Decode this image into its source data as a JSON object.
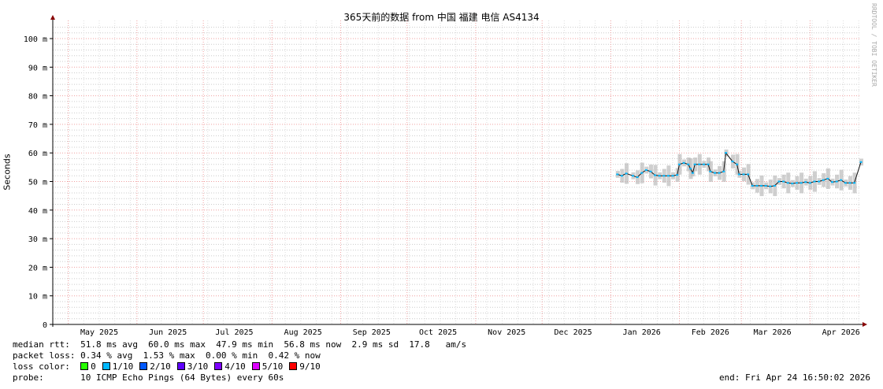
{
  "title": "365天前的数据 from 中国 福建 电信 AS4134",
  "watermark": "RRDTOOL / TOBI OETIKER",
  "chart_data": {
    "type": "line",
    "title": "365天前的数据 from 中国 福建 电信 AS4134",
    "ylabel": "Seconds",
    "ylim": [
      0,
      0.105
    ],
    "yticks": [
      {
        "v": 0,
        "label": "0"
      },
      {
        "v": 10,
        "label": "10 m"
      },
      {
        "v": 20,
        "label": "20 m"
      },
      {
        "v": 30,
        "label": "30 m"
      },
      {
        "v": 40,
        "label": "40 m"
      },
      {
        "v": 50,
        "label": "50 m"
      },
      {
        "v": 60,
        "label": "60 m"
      },
      {
        "v": 70,
        "label": "70 m"
      },
      {
        "v": 80,
        "label": "80 m"
      },
      {
        "v": 90,
        "label": "90 m"
      },
      {
        "v": 100,
        "label": "100 m"
      }
    ],
    "xrange": [
      "2025-04-24",
      "2026-04-24"
    ],
    "xticks": [
      "May 2025",
      "Jun 2025",
      "Jul 2025",
      "Aug 2025",
      "Sep 2025",
      "Oct 2025",
      "Nov 2025",
      "Dec 2025",
      "Jan 2026",
      "Feb 2026",
      "Mar 2026",
      "Apr 2026"
    ],
    "grid": true,
    "series": [
      {
        "name": "median rtt (ms)",
        "points": [
          [
            "2026-01-04",
            52.5
          ],
          [
            "2026-01-06",
            52
          ],
          [
            "2026-01-08",
            52.8
          ],
          [
            "2026-01-11",
            52
          ],
          [
            "2026-01-13",
            51.5
          ],
          [
            "2026-01-15",
            53
          ],
          [
            "2026-01-17",
            54
          ],
          [
            "2026-01-19",
            53.5
          ],
          [
            "2026-01-21",
            52.2
          ],
          [
            "2026-01-23",
            52
          ],
          [
            "2026-01-25",
            52
          ],
          [
            "2026-01-27",
            52
          ],
          [
            "2026-01-29",
            52
          ],
          [
            "2026-01-31",
            52.3
          ],
          [
            "2026-02-01",
            56
          ],
          [
            "2026-02-03",
            56.5
          ],
          [
            "2026-02-05",
            56
          ],
          [
            "2026-02-06",
            54.5
          ],
          [
            "2026-02-07",
            53
          ],
          [
            "2026-02-08",
            56
          ],
          [
            "2026-02-10",
            56
          ],
          [
            "2026-02-12",
            56
          ],
          [
            "2026-02-14",
            56
          ],
          [
            "2026-02-15",
            53.5
          ],
          [
            "2026-02-17",
            53
          ],
          [
            "2026-02-19",
            53
          ],
          [
            "2026-02-21",
            53.5
          ],
          [
            "2026-02-22",
            60
          ],
          [
            "2026-02-25",
            57
          ],
          [
            "2026-02-27",
            56
          ],
          [
            "2026-02-28",
            52.5
          ],
          [
            "2026-03-02",
            52.5
          ],
          [
            "2026-03-04",
            52.5
          ],
          [
            "2026-03-06",
            48.5
          ],
          [
            "2026-03-08",
            48.5
          ],
          [
            "2026-03-10",
            48.5
          ],
          [
            "2026-03-12",
            48.5
          ],
          [
            "2026-03-14",
            48.3
          ],
          [
            "2026-03-16",
            48.5
          ],
          [
            "2026-03-18",
            50
          ],
          [
            "2026-03-20",
            50
          ],
          [
            "2026-03-22",
            49.5
          ],
          [
            "2026-03-24",
            49.3
          ],
          [
            "2026-03-26",
            49.5
          ],
          [
            "2026-03-28",
            49.5
          ],
          [
            "2026-03-30",
            49.8
          ],
          [
            "2026-04-01",
            49.5
          ],
          [
            "2026-04-03",
            50
          ],
          [
            "2026-04-05",
            50
          ],
          [
            "2026-04-07",
            50.5
          ],
          [
            "2026-04-09",
            51
          ],
          [
            "2026-04-11",
            49.8
          ],
          [
            "2026-04-13",
            50
          ],
          [
            "2026-04-15",
            50.5
          ],
          [
            "2026-04-17",
            49.5
          ],
          [
            "2026-04-19",
            49.5
          ],
          [
            "2026-04-21",
            49.5
          ],
          [
            "2026-04-24",
            56.8
          ]
        ]
      }
    ]
  },
  "legend": {
    "median_rtt": "median rtt:  51.8 ms avg  60.0 ms max  47.9 ms min  56.8 ms now  2.9 ms sd  17.8   am/s",
    "packet_loss": "packet loss: 0.34 % avg  1.53 % max  0.00 % min  0.42 % now",
    "loss_color_label": "loss color:",
    "loss_colors": [
      {
        "label": "0",
        "color": "#26ff00"
      },
      {
        "label": "1/10",
        "color": "#00b8ff"
      },
      {
        "label": "2/10",
        "color": "#0059ff"
      },
      {
        "label": "3/10",
        "color": "#5e00ff"
      },
      {
        "label": "4/10",
        "color": "#7e00ff"
      },
      {
        "label": "5/10",
        "color": "#dd00ff"
      },
      {
        "label": "9/10",
        "color": "#ff0000"
      }
    ],
    "probe": "probe:       10 ICMP Echo Pings (64 Bytes) every 60s",
    "end": "end: Fri Apr 24 16:50:02 2026"
  }
}
